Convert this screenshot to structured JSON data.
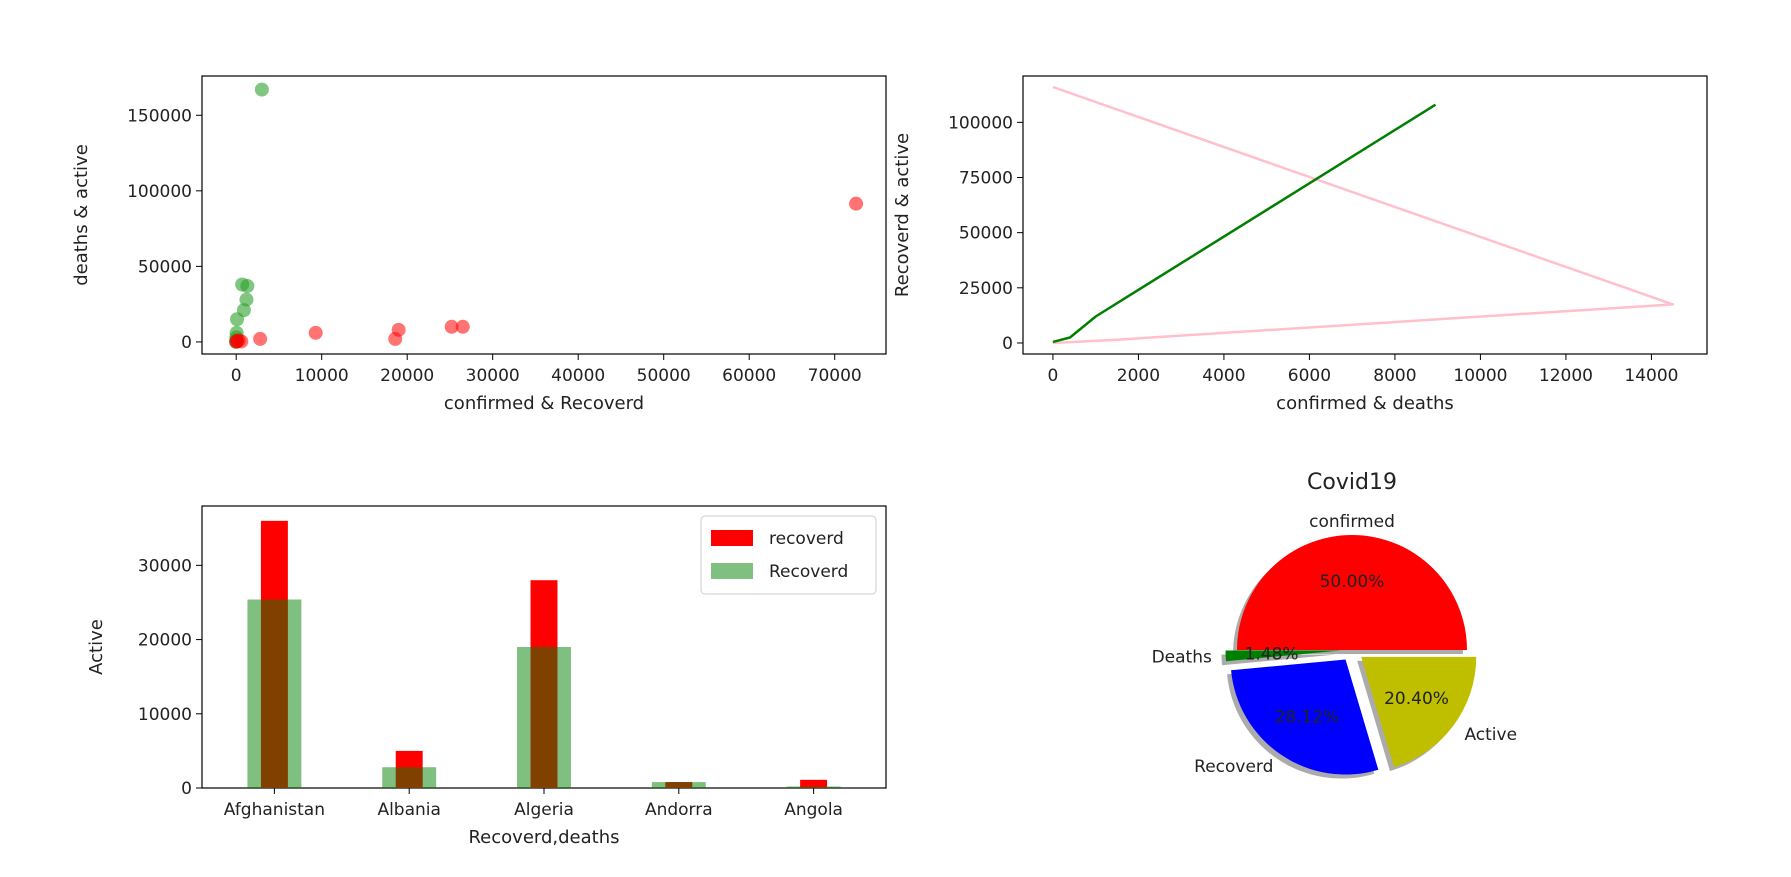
{
  "chart_data": [
    {
      "type": "scatter",
      "xlabel": "confirmed & Recoverd",
      "ylabel": "deaths & active",
      "xlim": [
        -4000,
        76000
      ],
      "ylim": [
        -8000,
        176000
      ],
      "xticks": [
        0,
        10000,
        20000,
        30000,
        40000,
        50000,
        60000,
        70000
      ],
      "yticks": [
        0,
        50000,
        100000,
        150000
      ],
      "series": [
        {
          "color": "#2ca02c",
          "alpha": 0.6,
          "x": [
            3000,
            1300,
            700,
            1200,
            900,
            100,
            50,
            20,
            10,
            5,
            0
          ],
          "y": [
            167000,
            37000,
            38000,
            28000,
            21000,
            15000,
            6000,
            3000,
            1000,
            500,
            100
          ]
        },
        {
          "color": "#ff0000",
          "alpha": 0.55,
          "x": [
            72500,
            26500,
            25200,
            19000,
            18600,
            9300,
            2800,
            600,
            300,
            100,
            0
          ],
          "y": [
            91500,
            10000,
            10000,
            8000,
            2000,
            6000,
            2000,
            300,
            1000,
            500,
            100
          ]
        }
      ]
    },
    {
      "type": "line",
      "xlabel": "confirmed & deaths",
      "ylabel": "Recoverd & active",
      "xlim": [
        -700,
        15300
      ],
      "ylim": [
        -5000,
        121000
      ],
      "xticks": [
        0,
        2000,
        4000,
        6000,
        8000,
        10000,
        12000,
        14000
      ],
      "yticks": [
        0,
        25000,
        50000,
        75000,
        100000
      ],
      "series": [
        {
          "color": "#ffc0cb",
          "x": [
            0,
            14500,
            1500,
            0
          ],
          "y": [
            116000,
            17500,
            1500,
            0
          ]
        },
        {
          "color": "#008000",
          "x": [
            0,
            200,
            400,
            1000,
            8950
          ],
          "y": [
            500,
            1500,
            2500,
            12000,
            108000
          ]
        }
      ]
    },
    {
      "type": "bar",
      "xlabel": "Recoverd,deaths",
      "ylabel": "Active",
      "categories": [
        "Afghanistan",
        "Albania",
        "Algeria",
        "Andorra",
        "Angola"
      ],
      "ylim": [
        0,
        38000
      ],
      "yticks": [
        0,
        10000,
        20000,
        30000
      ],
      "legend_position": "upper-right",
      "series": [
        {
          "name": "recoverd",
          "color": "#ff0000",
          "alpha": 1.0,
          "width_frac": 0.2,
          "values": [
            36000,
            5000,
            28000,
            800,
            1100
          ]
        },
        {
          "name": "Recoverd",
          "color": "#008000",
          "alpha": 0.5,
          "width_frac": 0.4,
          "values": [
            25400,
            2800,
            19000,
            800,
            200
          ]
        }
      ]
    },
    {
      "type": "pie",
      "title": "Covid19",
      "slices": [
        {
          "label": "confirmed",
          "pct_label": "50.00%",
          "value": 50.0,
          "color": "#ff0000",
          "explode": 0.0
        },
        {
          "label": "Deaths",
          "pct_label": "1.48%",
          "value": 1.48,
          "color": "#008000",
          "explode": 0.1
        },
        {
          "label": "Recoverd",
          "pct_label": "28.12%",
          "value": 28.12,
          "color": "#0000ff",
          "explode": 0.1
        },
        {
          "label": "Active",
          "pct_label": "20.40%",
          "value": 20.4,
          "color": "#bfbf00",
          "explode": 0.1
        }
      ]
    }
  ]
}
